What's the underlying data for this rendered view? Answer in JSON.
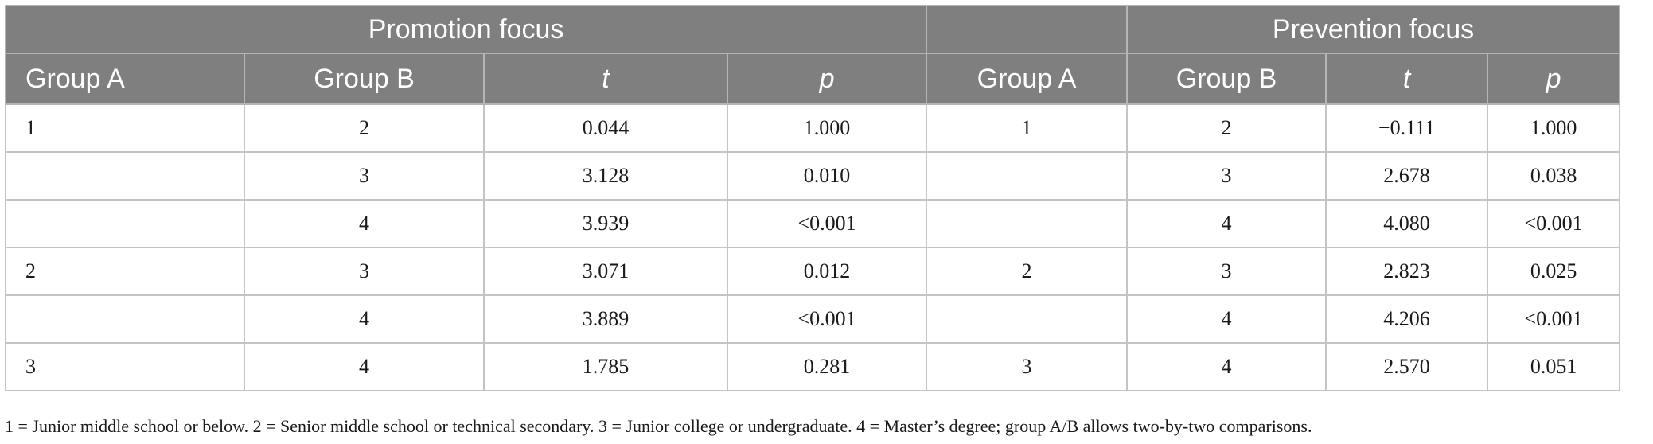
{
  "header": {
    "left_group": "Promotion focus",
    "middle_group": "",
    "right_group": "Prevention focus",
    "columns": [
      "Group A",
      "Group B",
      "t",
      "p",
      "Group A",
      "Group B",
      "t",
      "p"
    ]
  },
  "rows": [
    [
      "1",
      "2",
      "0.044",
      "1.000",
      "1",
      "2",
      "−0.111",
      "1.000"
    ],
    [
      "",
      "3",
      "3.128",
      "0.010",
      "",
      "3",
      "2.678",
      "0.038"
    ],
    [
      "",
      "4",
      "3.939",
      "<0.001",
      "",
      "4",
      "4.080",
      "<0.001"
    ],
    [
      "2",
      "3",
      "3.071",
      "0.012",
      "2",
      "3",
      "2.823",
      "0.025"
    ],
    [
      "",
      "4",
      "3.889",
      "<0.001",
      "",
      "4",
      "4.206",
      "<0.001"
    ],
    [
      "3",
      "4",
      "1.785",
      "0.281",
      "3",
      "4",
      "2.570",
      "0.051"
    ]
  ],
  "footnote": "1 = Junior middle school or below. 2 = Senior middle school or technical secondary. 3 = Junior college or undergraduate. 4 = Master’s degree; group A/B allows two-by-two comparisons."
}
